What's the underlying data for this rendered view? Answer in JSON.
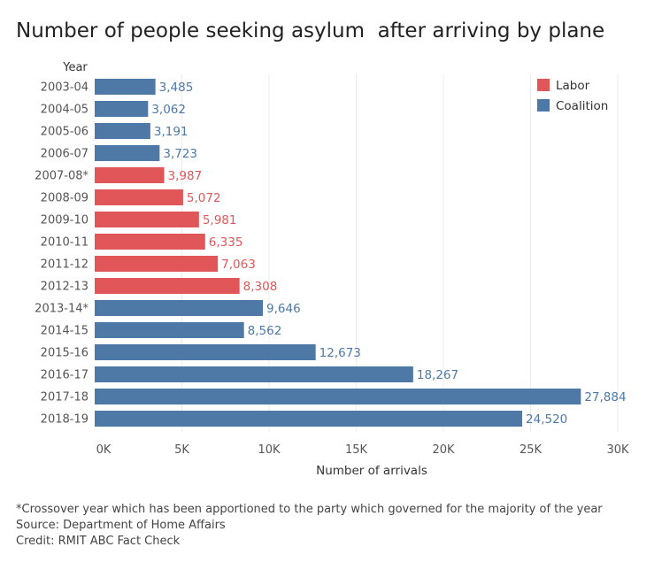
{
  "chart_data": {
    "type": "bar",
    "orientation": "horizontal",
    "title": "Number of people seeking asylum  after arriving by plane",
    "category_axis_label": "Year",
    "xlabel": "Number of arrivals",
    "xlim": [
      0,
      30000
    ],
    "xticks": [
      0,
      5000,
      10000,
      15000,
      20000,
      25000,
      30000
    ],
    "xtick_labels": [
      "0K",
      "5K",
      "10K",
      "15K",
      "20K",
      "25K",
      "30K"
    ],
    "grid": "vertical",
    "legend_position": "top-right",
    "legend": [
      {
        "name": "Labor",
        "color": "#e15759"
      },
      {
        "name": "Coalition",
        "color": "#4e79a7"
      }
    ],
    "bars": [
      {
        "category": "2003-04",
        "value": 3485,
        "label": "3,485",
        "party": "Coalition"
      },
      {
        "category": "2004-05",
        "value": 3062,
        "label": "3,062",
        "party": "Coalition"
      },
      {
        "category": "2005-06",
        "value": 3191,
        "label": "3,191",
        "party": "Coalition"
      },
      {
        "category": "2006-07",
        "value": 3723,
        "label": "3,723",
        "party": "Coalition"
      },
      {
        "category": "2007-08*",
        "value": 3987,
        "label": "3,987",
        "party": "Labor"
      },
      {
        "category": "2008-09",
        "value": 5072,
        "label": "5,072",
        "party": "Labor"
      },
      {
        "category": "2009-10",
        "value": 5981,
        "label": "5,981",
        "party": "Labor"
      },
      {
        "category": "2010-11",
        "value": 6335,
        "label": "6,335",
        "party": "Labor"
      },
      {
        "category": "2011-12",
        "value": 7063,
        "label": "7,063",
        "party": "Labor"
      },
      {
        "category": "2012-13",
        "value": 8308,
        "label": "8,308",
        "party": "Labor"
      },
      {
        "category": "2013-14*",
        "value": 9646,
        "label": "9,646",
        "party": "Coalition"
      },
      {
        "category": "2014-15",
        "value": 8562,
        "label": "8,562",
        "party": "Coalition"
      },
      {
        "category": "2015-16",
        "value": 12673,
        "label": "12,673",
        "party": "Coalition"
      },
      {
        "category": "2016-17",
        "value": 18267,
        "label": "18,267",
        "party": "Coalition"
      },
      {
        "category": "2017-18",
        "value": 27884,
        "label": "27,884",
        "party": "Coalition"
      },
      {
        "category": "2018-19",
        "value": 24520,
        "label": "24,520",
        "party": "Coalition"
      }
    ]
  },
  "footer": {
    "note": "*Crossover year which has been apportioned to the party which governed for the majority of the year",
    "source": "Source: Department of Home Affairs",
    "credit": "Credit: RMIT ABC Fact Check"
  }
}
